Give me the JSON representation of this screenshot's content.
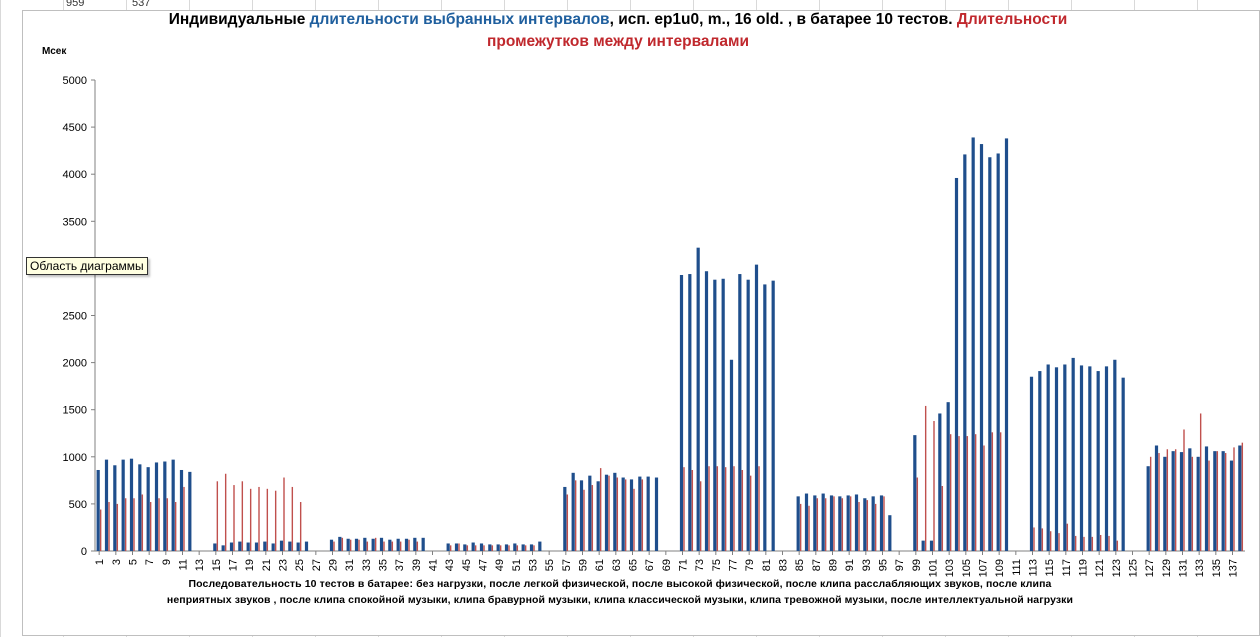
{
  "sheet": {
    "cell_a": "959",
    "cell_b": "537"
  },
  "title": {
    "part1": "Индивидуальные ",
    "part2": "длительности  выбранных интервалов",
    "part3": ", исп. ep1u0, m., 16 old. , в батарее 10 тестов. ",
    "part4": "Длительности",
    "part5": "промежутков между интервалами"
  },
  "unit_label": "Мсек",
  "x_caption_line1": "Последовательность  10 тестов в батарее: без нагрузки, после легкой физической, после высокой физической, после клипа расслабляющих звуков, после клипа",
  "x_caption_line2": "неприятных звуков , после клипа спокойной музыки, клипа бравурной музыки, клипа классической музыки, клипа тревожной музыки, после интеллектуальной нагрузки",
  "tooltip": "Область диаграммы",
  "colors": {
    "series1": "#1f4e8c",
    "series2": "#c0504d",
    "title_blue": "#1f5f9e",
    "title_red": "#c0282d"
  },
  "chart_data": {
    "type": "bar",
    "title": "Индивидуальные длительности выбранных интервалов, исп. ep1u0, m., 16 old. , в батарее 10 тестов. Длительности промежутков между интервалами",
    "ylabel": "Мсек",
    "ylim": [
      0,
      5000
    ],
    "yticks": [
      0,
      500,
      1000,
      1500,
      2000,
      2500,
      3000,
      3500,
      4000,
      4500,
      5000
    ],
    "grid": false,
    "legend": "none",
    "x": [
      1,
      2,
      3,
      4,
      5,
      6,
      7,
      8,
      9,
      10,
      11,
      12,
      13,
      14,
      15,
      16,
      17,
      18,
      19,
      20,
      21,
      22,
      23,
      24,
      25,
      26,
      27,
      28,
      29,
      30,
      31,
      32,
      33,
      34,
      35,
      36,
      37,
      38,
      39,
      40,
      41,
      42,
      43,
      44,
      45,
      46,
      47,
      48,
      49,
      50,
      51,
      52,
      53,
      54,
      55,
      56,
      57,
      58,
      59,
      60,
      61,
      62,
      63,
      64,
      65,
      66,
      67,
      68,
      69,
      70,
      71,
      72,
      73,
      74,
      75,
      76,
      77,
      78,
      79,
      80,
      81,
      82,
      83,
      84,
      85,
      86,
      87,
      88,
      89,
      90,
      91,
      92,
      93,
      94,
      95,
      96,
      97,
      98,
      99,
      100,
      101,
      102,
      103,
      104,
      105,
      106,
      107,
      108,
      109,
      110,
      111,
      112,
      113,
      114,
      115,
      116,
      117,
      118,
      119,
      120,
      121,
      122,
      123,
      124,
      125,
      126,
      127,
      128,
      129,
      130,
      131,
      132,
      133,
      134,
      135,
      136,
      137,
      138
    ],
    "x_tick_labels": [
      "1",
      "3",
      "5",
      "7",
      "9",
      "11",
      "13",
      "15",
      "17",
      "19",
      "21",
      "23",
      "25",
      "27",
      "29",
      "31",
      "33",
      "35",
      "37",
      "39",
      "41",
      "43",
      "45",
      "47",
      "49",
      "51",
      "53",
      "55",
      "57",
      "59",
      "61",
      "63",
      "65",
      "67",
      "69",
      "71",
      "73",
      "75",
      "77",
      "79",
      "81",
      "83",
      "85",
      "87",
      "89",
      "91",
      "93",
      "95",
      "97",
      "99",
      "101",
      "103",
      "105",
      "107",
      "109",
      "111",
      "113",
      "115",
      "117",
      "119",
      "121",
      "123",
      "125",
      "127",
      "129",
      "131",
      "133",
      "135",
      "137"
    ],
    "series": [
      {
        "values": [
          860,
          970,
          910,
          970,
          980,
          920,
          890,
          940,
          950,
          970,
          860,
          840,
          0,
          0,
          80,
          60,
          90,
          100,
          90,
          90,
          100,
          80,
          110,
          100,
          90,
          100,
          0,
          0,
          120,
          150,
          130,
          130,
          140,
          130,
          140,
          120,
          130,
          130,
          140,
          140,
          0,
          0,
          80,
          80,
          70,
          90,
          80,
          70,
          70,
          70,
          80,
          70,
          70,
          100,
          0,
          0,
          680,
          830,
          750,
          800,
          740,
          810,
          830,
          780,
          760,
          790,
          790,
          780,
          0,
          0,
          2930,
          2940,
          3220,
          2970,
          2880,
          2890,
          2030,
          2940,
          2880,
          3040,
          2830,
          2870,
          0,
          0,
          580,
          610,
          590,
          610,
          590,
          580,
          590,
          600,
          560,
          580,
          590,
          380,
          0,
          0,
          1230,
          110,
          110,
          1460,
          1580,
          3960,
          4210,
          4390,
          4320,
          4180,
          4220,
          4380,
          0,
          0,
          1850,
          1910,
          1980,
          1950,
          1980,
          2050,
          1970,
          1960,
          1910,
          1960,
          2030,
          1840,
          0,
          0,
          900,
          1120,
          1000,
          1060,
          1050,
          1090,
          1000,
          1110,
          1060,
          1060,
          960,
          1120
        ]
      },
      {
        "values": [
          440,
          520,
          500,
          560,
          560,
          600,
          520,
          560,
          560,
          520,
          680,
          0,
          0,
          0,
          740,
          820,
          700,
          740,
          660,
          680,
          660,
          640,
          780,
          680,
          520,
          0,
          0,
          0,
          100,
          140,
          120,
          120,
          100,
          140,
          100,
          100,
          100,
          120,
          100,
          0,
          0,
          0,
          60,
          80,
          60,
          60,
          60,
          60,
          60,
          60,
          60,
          60,
          60,
          0,
          0,
          0,
          600,
          750,
          650,
          700,
          880,
          800,
          780,
          760,
          660,
          760,
          0,
          0,
          0,
          0,
          890,
          860,
          740,
          900,
          900,
          890,
          900,
          860,
          800,
          900,
          0,
          0,
          0,
          0,
          500,
          480,
          560,
          560,
          580,
          560,
          580,
          520,
          540,
          500,
          580,
          0,
          0,
          0,
          780,
          1540,
          1380,
          690,
          1240,
          1220,
          1220,
          1240,
          1120,
          1260,
          1260,
          0,
          0,
          0,
          250,
          240,
          210,
          190,
          290,
          160,
          150,
          150,
          170,
          160,
          110,
          0,
          0,
          0,
          1000,
          1040,
          1080,
          1080,
          1290,
          1000,
          1460,
          960,
          1060,
          1040,
          1100,
          1150
        ]
      }
    ]
  }
}
